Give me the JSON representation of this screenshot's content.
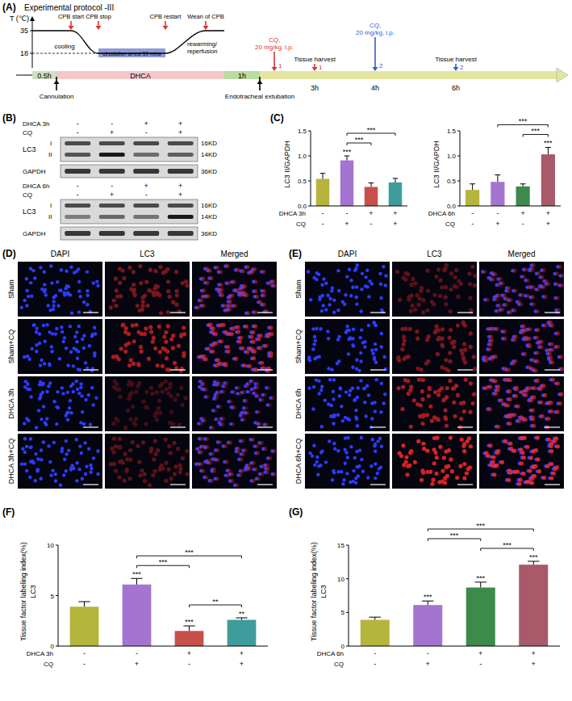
{
  "panel_labels": [
    "(A)",
    "(B)",
    "(C)",
    "(D)",
    "(E)",
    "(F)",
    "(G)"
  ],
  "protocol": {
    "title": "Experimental protocol -III",
    "axis_label": "T (℃)",
    "temperature_ticks": [
      35,
      18
    ],
    "events": [
      "CPB start",
      "CPB stop",
      "CPB restart",
      "Wean of CPB"
    ],
    "phases": [
      "cooling",
      "circulation arrest 50 mins",
      "rewarming/ reperfusion"
    ],
    "timeline": [
      "0.5h",
      "DHCA",
      "1h"
    ],
    "below": [
      "Cannulation",
      "Endotracheal extubation"
    ],
    "drug": "CQ, 20 mg/kg, i.p.",
    "harvest": "Tissue harvest",
    "group_numbers": [
      "1",
      "2"
    ],
    "times": [
      "3h",
      "4h",
      "6h"
    ]
  },
  "blots": {
    "target": "LC3",
    "bands": [
      "I",
      "II"
    ],
    "band_sizes": [
      "16KD",
      "14KD"
    ],
    "control": "GAPDH",
    "control_size": "36KD",
    "panels": [
      {
        "rows": [
          {
            "label": "DHCA 3h",
            "values": [
              "-",
              "-",
              "+",
              "+"
            ]
          },
          {
            "label": "CQ",
            "values": [
              "-",
              "+",
              "-",
              "+"
            ]
          }
        ]
      },
      {
        "rows": [
          {
            "label": "DHCA 6h",
            "values": [
              "-",
              "-",
              "+",
              "+"
            ]
          },
          {
            "label": "CQ",
            "values": [
              "-",
              "+",
              "-",
              "+"
            ]
          }
        ]
      }
    ]
  },
  "images": {
    "columns": [
      "DAPI",
      "LC3",
      "Merged"
    ],
    "panels": [
      {
        "rows": [
          "Sham",
          "Sham+CQ",
          "DHCA 3h",
          "DHCA 3h+CQ"
        ]
      },
      {
        "rows": [
          "Sham",
          "Sham+CQ",
          "DHCA 6h",
          "DHCA 6h+CQ"
        ]
      }
    ]
  },
  "chart_data": [
    {
      "type": "bar",
      "y_label": "LC3 II/GAPDH",
      "categories": [
        null,
        null,
        null,
        null
      ],
      "x_rows": [
        {
          "label": "DHCA 3h",
          "values": [
            "-",
            "-",
            "+",
            "+"
          ]
        },
        {
          "label": "CQ",
          "values": [
            "-",
            "+",
            "-",
            "+"
          ]
        }
      ],
      "values": [
        0.54,
        0.91,
        0.38,
        0.47
      ],
      "errors": [
        0.11,
        0.09,
        0.08,
        0.08
      ],
      "colors": [
        "#b5b43c",
        "#a574d0",
        "#c8504a",
        "#3f9c9c"
      ],
      "ylim": [
        0,
        1.5
      ],
      "yticks": [
        {
          "value": 0,
          "label": "0.0"
        },
        0.5,
        {
          "value": 1,
          "label": "1.0"
        },
        1.5
      ],
      "bar_stars": [
        null,
        "***",
        null,
        null
      ],
      "brackets": [
        {
          "from": 1,
          "to": 2,
          "label": "***"
        },
        {
          "from": 1,
          "to": 3,
          "label": "***"
        }
      ]
    },
    {
      "type": "bar",
      "y_label": "LC3 II/GAPDH",
      "categories": [
        null,
        null,
        null,
        null
      ],
      "x_rows": [
        {
          "label": "DHCA 6h",
          "values": [
            "-",
            "-",
            "+",
            "+"
          ]
        },
        {
          "label": "CQ",
          "values": [
            "-",
            "+",
            "-",
            "+"
          ]
        }
      ],
      "values": [
        0.32,
        0.48,
        0.39,
        1.03
      ],
      "errors": [
        0.12,
        0.14,
        0.05,
        0.14
      ],
      "colors": [
        "#b5b43c",
        "#a574d0",
        "#3d8a4a",
        "#a85a6a"
      ],
      "ylim": [
        0,
        1.5
      ],
      "yticks": [
        {
          "value": 0,
          "label": "0.0"
        },
        0.5,
        {
          "value": 1,
          "label": "1.0"
        },
        1.5
      ],
      "bar_stars": [
        null,
        null,
        null,
        "***"
      ],
      "brackets": [
        {
          "from": 2,
          "to": 3,
          "label": "***"
        },
        {
          "from": 1,
          "to": 3,
          "label": "***"
        }
      ]
    },
    {
      "type": "bar",
      "y_label": "Tissue factor labeling index(%)",
      "y_sublabel": "LC3",
      "categories": [
        null,
        null,
        null,
        null
      ],
      "x_rows": [
        {
          "label": "DHCA 3h",
          "values": [
            "-",
            "-",
            "+",
            "+"
          ]
        },
        {
          "label": "CQ",
          "values": [
            "-",
            "+",
            "-",
            "+"
          ]
        }
      ],
      "values": [
        3.9,
        6.1,
        1.5,
        2.6
      ],
      "errors": [
        0.5,
        0.6,
        0.5,
        0.2
      ],
      "colors": [
        "#b5b43c",
        "#a574d0",
        "#c8504a",
        "#3f9c9c"
      ],
      "ylim": [
        0,
        10
      ],
      "yticks": [
        0,
        5,
        10
      ],
      "bar_stars": [
        null,
        "***",
        "***",
        "**"
      ],
      "brackets": [
        {
          "from": 2,
          "to": 3,
          "label": "**"
        },
        {
          "from": 1,
          "to": 2,
          "label": "***"
        },
        {
          "from": 1,
          "to": 3,
          "label": "***"
        }
      ]
    },
    {
      "type": "bar",
      "y_label": "Tissue factor labeling index(%)",
      "y_sublabel": "LC3",
      "categories": [
        null,
        null,
        null,
        null
      ],
      "x_rows": [
        {
          "label": "DHCA 6h",
          "values": [
            "-",
            "-",
            "+",
            "+"
          ]
        },
        {
          "label": "CQ",
          "values": [
            "-",
            "+",
            "-",
            "+"
          ]
        }
      ],
      "values": [
        3.9,
        6.1,
        8.7,
        12.1
      ],
      "errors": [
        0.4,
        0.6,
        0.8,
        0.5
      ],
      "colors": [
        "#b5b43c",
        "#a574d0",
        "#3d8a4a",
        "#a85a6a"
      ],
      "ylim": [
        0,
        15
      ],
      "yticks": [
        0,
        5,
        10,
        15
      ],
      "bar_stars": [
        null,
        "***",
        "***",
        "***"
      ],
      "brackets": [
        {
          "from": 2,
          "to": 3,
          "label": "***"
        },
        {
          "from": 1,
          "to": 2,
          "label": "***"
        },
        {
          "from": 1,
          "to": 3,
          "label": "***"
        }
      ]
    }
  ]
}
